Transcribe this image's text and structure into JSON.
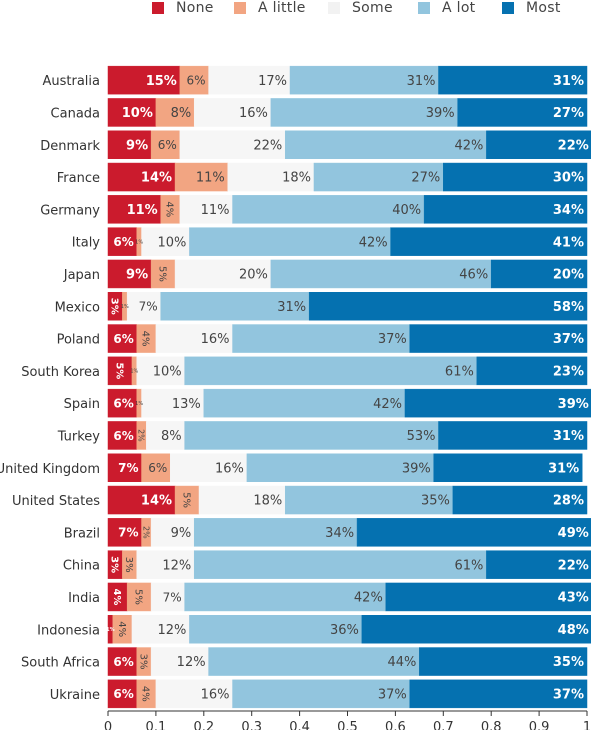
{
  "chart_data": {
    "type": "bar",
    "orientation": "horizontal",
    "stacked": true,
    "xlim": [
      0,
      1
    ],
    "x_ticks": [
      "0",
      "0.1",
      "0.2",
      "0.3",
      "0.4",
      "0.5",
      "0.6",
      "0.7",
      "0.8",
      "0.9",
      "1"
    ],
    "legend_position": "top",
    "categories": [
      "Australia",
      "Canada",
      "Denmark",
      "France",
      "Germany",
      "Italy",
      "Japan",
      "Mexico",
      "Poland",
      "South Korea",
      "Spain",
      "Turkey",
      "United Kingdom",
      "United States",
      "Brazil",
      "China",
      "India",
      "Indonesia",
      "South Africa",
      "Ukraine"
    ],
    "series": [
      {
        "name": "None",
        "color": "#cb1b2d",
        "values": [
          0.15,
          0.1,
          0.09,
          0.14,
          0.11,
          0.06,
          0.09,
          0.03,
          0.06,
          0.05,
          0.06,
          0.06,
          0.07,
          0.14,
          0.07,
          0.03,
          0.04,
          0.01,
          0.06,
          0.06
        ],
        "labels": [
          "15%",
          "10%",
          "9%",
          "14%",
          "11%",
          "6%",
          "9%",
          "3%",
          "6%",
          "5%",
          "6%",
          "6%",
          "7%",
          "14%",
          "7%",
          "3%",
          "4%",
          "1%",
          "6%",
          "6%"
        ]
      },
      {
        "name": "A little",
        "color": "#f2a582",
        "values": [
          0.06,
          0.08,
          0.06,
          0.11,
          0.04,
          0.01,
          0.05,
          0.01,
          0.04,
          0.01,
          0.01,
          0.02,
          0.06,
          0.05,
          0.02,
          0.03,
          0.05,
          0.04,
          0.03,
          0.04
        ],
        "labels": [
          "6%",
          "8%",
          "6%",
          "11%",
          "4%",
          "1%",
          "5%",
          "1%",
          "4%",
          "1%",
          "1%",
          "2%",
          "6%",
          "5%",
          "2%",
          "3%",
          "5%",
          "4%",
          "3%",
          "4%"
        ]
      },
      {
        "name": "Some",
        "color": "#f6f6f6",
        "values": [
          0.17,
          0.16,
          0.22,
          0.18,
          0.11,
          0.1,
          0.2,
          0.07,
          0.16,
          0.1,
          0.13,
          0.08,
          0.16,
          0.18,
          0.09,
          0.12,
          0.07,
          0.12,
          0.12,
          0.16
        ],
        "labels": [
          "17%",
          "16%",
          "22%",
          "18%",
          "11%",
          "10%",
          "20%",
          "7%",
          "16%",
          "10%",
          "13%",
          "8%",
          "16%",
          "18%",
          "9%",
          "12%",
          "7%",
          "12%",
          "12%",
          "16%"
        ]
      },
      {
        "name": "A lot",
        "color": "#92c5de",
        "values": [
          0.31,
          0.39,
          0.42,
          0.27,
          0.4,
          0.42,
          0.46,
          0.31,
          0.37,
          0.61,
          0.42,
          0.53,
          0.39,
          0.35,
          0.34,
          0.61,
          0.42,
          0.36,
          0.44,
          0.37
        ],
        "labels": [
          "31%",
          "39%",
          "42%",
          "27%",
          "40%",
          "42%",
          "46%",
          "31%",
          "37%",
          "61%",
          "42%",
          "53%",
          "39%",
          "35%",
          "34%",
          "61%",
          "42%",
          "36%",
          "44%",
          "37%"
        ]
      },
      {
        "name": "Most",
        "color": "#0571b0",
        "values": [
          0.31,
          0.27,
          0.22,
          0.3,
          0.34,
          0.41,
          0.2,
          0.58,
          0.37,
          0.23,
          0.39,
          0.31,
          0.31,
          0.28,
          0.49,
          0.22,
          0.43,
          0.48,
          0.35,
          0.37
        ],
        "labels": [
          "31%",
          "27%",
          "22%",
          "30%",
          "34%",
          "41%",
          "20%",
          "58%",
          "37%",
          "23%",
          "39%",
          "31%",
          "31%",
          "28%",
          "49%",
          "22%",
          "43%",
          "48%",
          "35%",
          "37%"
        ]
      }
    ]
  }
}
